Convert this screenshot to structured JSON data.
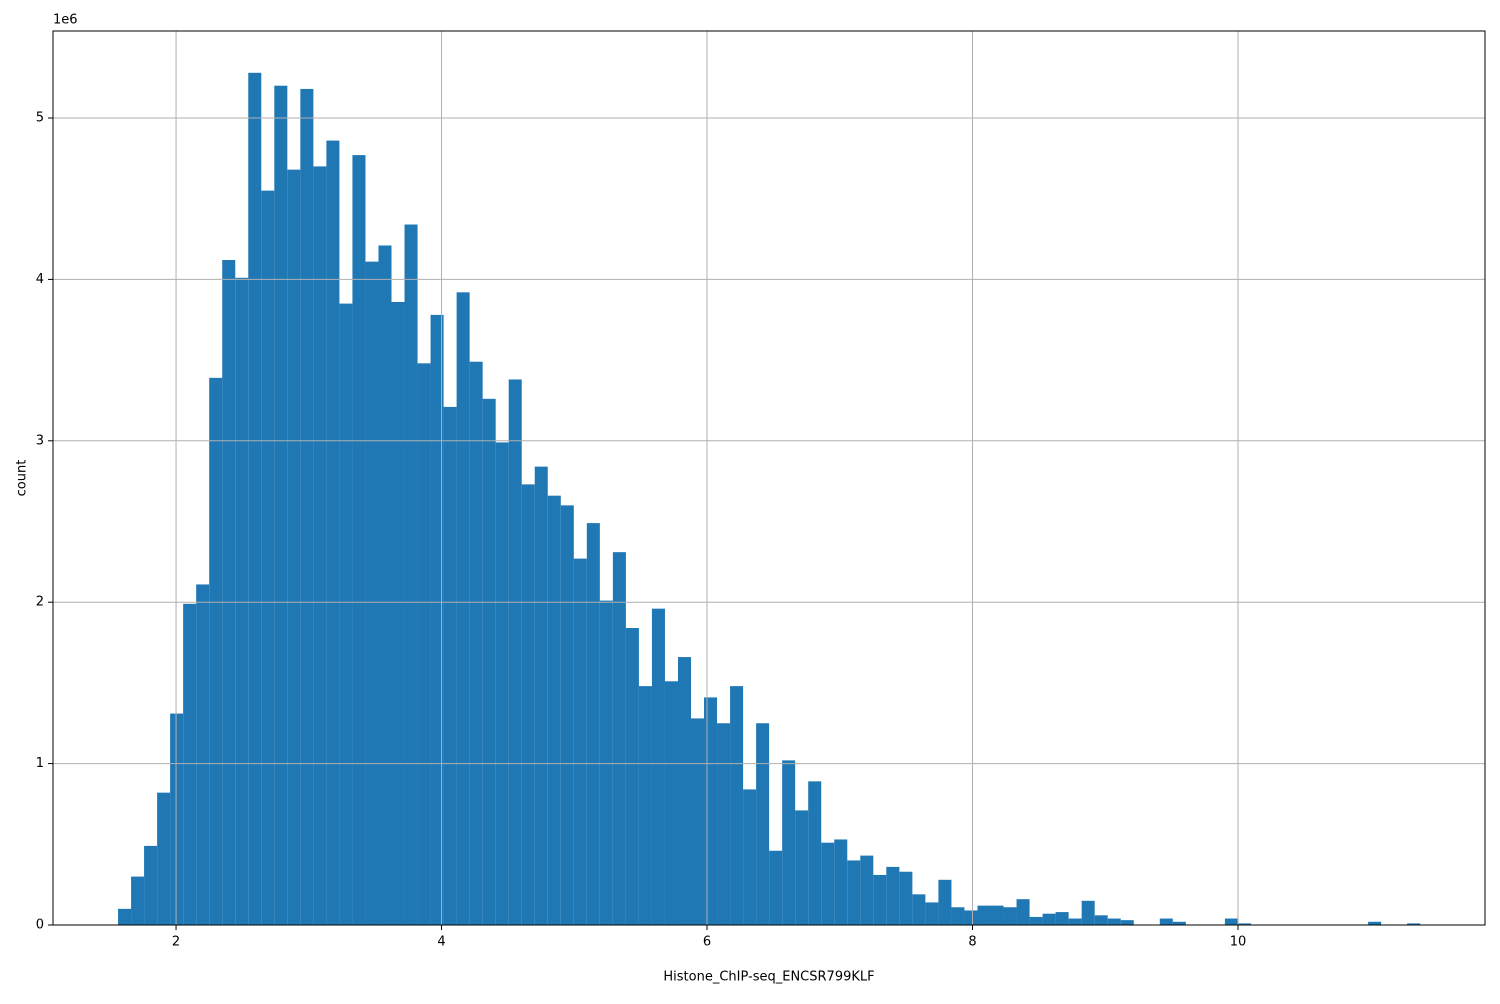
{
  "chart_data": {
    "type": "histogram",
    "x_label": "Histone_ChIP-seq_ENCSR799KLF",
    "y_label": "count",
    "y_offset_text": "1e6",
    "color": "#1f77b4",
    "grid": true,
    "bins": [
      1.563,
      1.6611,
      1.7592,
      1.8573,
      1.9554,
      2.0535,
      2.1516,
      2.2497,
      2.3478,
      2.4459,
      2.544,
      2.6421,
      2.7402,
      2.8383,
      2.9364,
      3.0345,
      3.1326,
      3.2307,
      3.3288,
      3.4269,
      3.525,
      3.6231,
      3.7212,
      3.8193,
      3.9174,
      4.0155,
      4.1136,
      4.2117,
      4.3098,
      4.4079,
      4.506,
      4.6041,
      4.7022,
      4.8003,
      4.8984,
      4.9965,
      5.0946,
      5.1927,
      5.2908,
      5.3889,
      5.487,
      5.5851,
      5.6832,
      5.7813,
      5.8794,
      5.9775,
      6.0756,
      6.1737,
      6.2718,
      6.3699,
      6.468,
      6.5661,
      6.6642,
      6.7623,
      6.8604,
      6.9585,
      7.0566,
      7.1547,
      7.2528,
      7.3509,
      7.449,
      7.5471,
      7.6452,
      7.7433,
      7.8414,
      7.9395,
      8.0376,
      8.1357,
      8.2338,
      8.3319,
      8.43,
      8.5281,
      8.6262,
      8.7243,
      8.8224,
      8.9205,
      9.0186,
      9.1167,
      9.2148,
      9.3129,
      9.411,
      9.5091,
      9.6072,
      9.7053,
      9.8034,
      9.9015,
      9.9996,
      10.0977,
      10.1958,
      10.2939,
      10.392,
      10.4901,
      10.5882,
      10.6863,
      10.7844,
      10.8825,
      10.9806,
      11.0787,
      11.1768,
      11.2749,
      11.373
    ],
    "values": [
      100000,
      300000,
      490000,
      820000,
      1310000,
      1990000,
      2110000,
      3390000,
      4120000,
      4010000,
      5280000,
      4550000,
      5200000,
      4680000,
      5180000,
      4700000,
      4860000,
      3850000,
      4770000,
      4110000,
      4210000,
      3860000,
      4340000,
      3480000,
      3780000,
      3210000,
      3920000,
      3490000,
      3260000,
      2990000,
      3380000,
      2730000,
      2840000,
      2660000,
      2600000,
      2270000,
      2490000,
      2010000,
      2310000,
      1840000,
      1480000,
      1960000,
      1510000,
      1660000,
      1280000,
      1410000,
      1250000,
      1480000,
      840000,
      1250000,
      460000,
      1020000,
      710000,
      890000,
      510000,
      530000,
      400000,
      430000,
      310000,
      360000,
      330000,
      190000,
      140000,
      280000,
      110000,
      90000,
      120000,
      120000,
      110000,
      160000,
      50000,
      70000,
      80000,
      40000,
      150000,
      60000,
      40000,
      30000,
      0,
      0,
      40000,
      20000,
      0,
      0,
      0,
      40000,
      10000,
      0,
      0,
      0,
      0,
      0,
      0,
      0,
      0,
      0,
      20000,
      0,
      0,
      10000
    ],
    "xlim": [
      1.073,
      11.861
    ],
    "ylim": [
      0,
      5539000
    ],
    "xticks": [
      2,
      4,
      6,
      8,
      10
    ],
    "yticks": [
      0,
      {
        "value": 1000000,
        "label": "1"
      },
      {
        "value": 2000000,
        "label": "2"
      },
      {
        "value": 3000000,
        "label": "3"
      },
      {
        "value": 4000000,
        "label": "4"
      },
      {
        "value": 5000000,
        "label": "5"
      }
    ]
  }
}
